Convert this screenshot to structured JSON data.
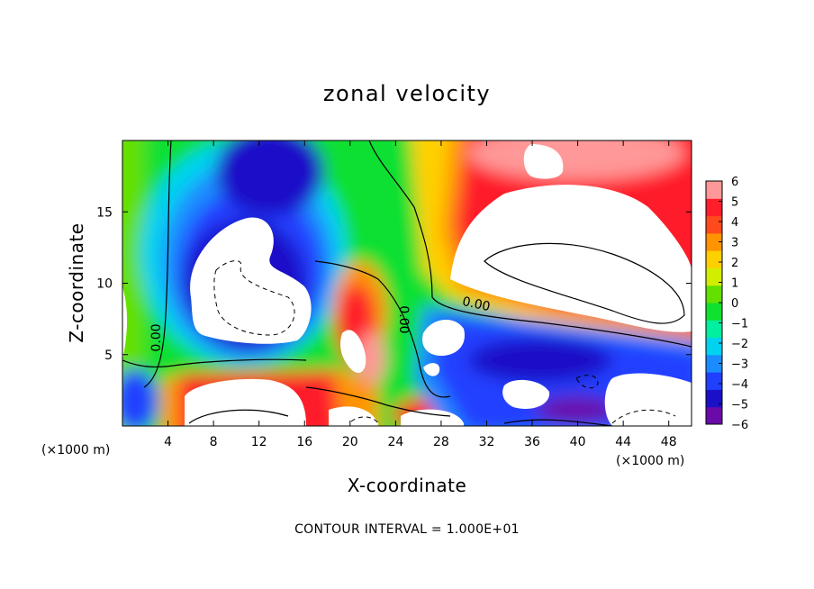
{
  "chart_data": {
    "type": "heatmap",
    "title": "zonal velocity",
    "xlabel": "X-coordinate",
    "ylabel": "Z-coordinate",
    "x_unit": "(×1000 m)",
    "y_unit": "(×1000 m)",
    "xlim": [
      0,
      50
    ],
    "ylim": [
      0,
      20
    ],
    "x_ticks": [
      "4",
      "8",
      "12",
      "16",
      "20",
      "24",
      "28",
      "32",
      "36",
      "40",
      "44",
      "48"
    ],
    "y_ticks": [
      "5",
      "10",
      "15"
    ],
    "colorbar": {
      "ticks": [
        "6",
        "5",
        "4",
        "3",
        "2",
        "1",
        "0",
        "−1",
        "−2",
        "−3",
        "−4",
        "−5",
        "−6"
      ],
      "range": [
        -6,
        6
      ],
      "colors": [
        "#6a0aa8",
        "#1a10c8",
        "#2040ff",
        "#1a8cff",
        "#00d2f0",
        "#00f0a0",
        "#10e030",
        "#64e000",
        "#d2ee00",
        "#ffd000",
        "#ff9400",
        "#ff4a1e",
        "#ff1e2a",
        "#ff9898"
      ]
    },
    "contour_labels": [
      "0.00",
      "0.00",
      "0.00"
    ],
    "footer": "CONTOUR INTERVAL = 1.000E+01"
  }
}
